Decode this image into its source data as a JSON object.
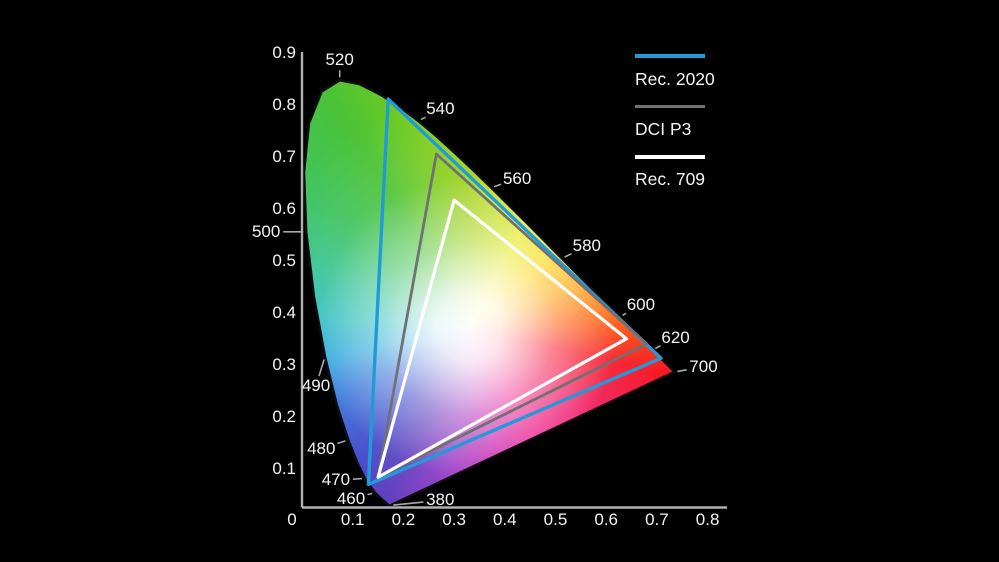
{
  "figure": {
    "background": "#000000",
    "legend": [
      {
        "label": "Rec. 2020",
        "color": "#219bd8"
      },
      {
        "label": "DCI P3",
        "color": "#707173"
      },
      {
        "label": "Rec. 709",
        "color": "#ffffff"
      }
    ]
  },
  "chart_data": {
    "type": "area",
    "subtype": "CIE 1931 xy chromaticity diagram with color gamut overlays",
    "title": "",
    "xlabel": "",
    "ylabel": "",
    "xlim": [
      0,
      0.8
    ],
    "ylim": [
      0,
      0.9
    ],
    "grid": false,
    "legend_position": "top-right",
    "x_ticks": [
      "0",
      "0.1",
      "0.2",
      "0.3",
      "0.4",
      "0.5",
      "0.6",
      "0.7",
      "0.8"
    ],
    "y_ticks": [
      "0.9",
      "0.8",
      "0.7",
      "0.6",
      "0.5",
      "0.4",
      "0.3",
      "0.2",
      "0.1"
    ],
    "spectral_locus": [
      [
        380,
        0.1741,
        0.005
      ],
      [
        390,
        0.1738,
        0.0049
      ],
      [
        400,
        0.1733,
        0.0048
      ],
      [
        410,
        0.1726,
        0.0048
      ],
      [
        420,
        0.1714,
        0.0051
      ],
      [
        430,
        0.1689,
        0.0069
      ],
      [
        440,
        0.1644,
        0.0109
      ],
      [
        450,
        0.1566,
        0.0177
      ],
      [
        460,
        0.144,
        0.0297
      ],
      [
        470,
        0.1241,
        0.0578
      ],
      [
        475,
        0.1096,
        0.0868
      ],
      [
        480,
        0.0913,
        0.1327
      ],
      [
        485,
        0.0687,
        0.2007
      ],
      [
        490,
        0.0454,
        0.295
      ],
      [
        495,
        0.0235,
        0.4127
      ],
      [
        500,
        0.0082,
        0.5384
      ],
      [
        505,
        0.0039,
        0.6548
      ],
      [
        510,
        0.0139,
        0.7502
      ],
      [
        515,
        0.0389,
        0.812
      ],
      [
        520,
        0.0743,
        0.8338
      ],
      [
        525,
        0.1142,
        0.8262
      ],
      [
        530,
        0.1547,
        0.8059
      ],
      [
        535,
        0.1929,
        0.7816
      ],
      [
        540,
        0.2296,
        0.7543
      ],
      [
        545,
        0.2658,
        0.7243
      ],
      [
        550,
        0.3016,
        0.6923
      ],
      [
        555,
        0.3373,
        0.6588
      ],
      [
        560,
        0.3731,
        0.6245
      ],
      [
        565,
        0.4087,
        0.5896
      ],
      [
        570,
        0.4441,
        0.5547
      ],
      [
        575,
        0.4788,
        0.5202
      ],
      [
        580,
        0.5125,
        0.4866
      ],
      [
        585,
        0.5448,
        0.4544
      ],
      [
        590,
        0.5752,
        0.4242
      ],
      [
        595,
        0.6029,
        0.3965
      ],
      [
        600,
        0.627,
        0.3725
      ],
      [
        605,
        0.6482,
        0.3514
      ],
      [
        610,
        0.6658,
        0.334
      ],
      [
        615,
        0.6801,
        0.3197
      ],
      [
        620,
        0.6915,
        0.3083
      ],
      [
        625,
        0.7006,
        0.2993
      ],
      [
        630,
        0.7079,
        0.292
      ],
      [
        635,
        0.714,
        0.2859
      ],
      [
        640,
        0.719,
        0.2809
      ],
      [
        650,
        0.726,
        0.274
      ],
      [
        660,
        0.73,
        0.27
      ],
      [
        680,
        0.7334,
        0.2666
      ],
      [
        700,
        0.7347,
        0.2653
      ]
    ],
    "wavelength_labels": [
      {
        "label": "520",
        "x": 0.0743,
        "y": 0.8338
      },
      {
        "label": "540",
        "x": 0.2296,
        "y": 0.7543
      },
      {
        "label": "560",
        "x": 0.3731,
        "y": 0.6245
      },
      {
        "label": "580",
        "x": 0.5125,
        "y": 0.4866
      },
      {
        "label": "600",
        "x": 0.627,
        "y": 0.3725
      },
      {
        "label": "620",
        "x": 0.6915,
        "y": 0.3083
      },
      {
        "label": "700",
        "x": 0.7347,
        "y": 0.2653
      },
      {
        "label": "500",
        "x": 0.0082,
        "y": 0.5384
      },
      {
        "label": "490",
        "x": 0.0454,
        "y": 0.295
      },
      {
        "label": "480",
        "x": 0.0913,
        "y": 0.1327
      },
      {
        "label": "470",
        "x": 0.1241,
        "y": 0.0578
      },
      {
        "label": "460",
        "x": 0.144,
        "y": 0.0297
      },
      {
        "label": "380",
        "x": 0.1741,
        "y": 0.005
      }
    ],
    "series": [
      {
        "name": "Rec. 2020",
        "color": "#219bd8",
        "points": [
          [
            0.708,
            0.292
          ],
          [
            0.17,
            0.797
          ],
          [
            0.131,
            0.046
          ]
        ]
      },
      {
        "name": "DCI P3",
        "color": "#707173",
        "points": [
          [
            0.68,
            0.32
          ],
          [
            0.265,
            0.69
          ],
          [
            0.15,
            0.06
          ]
        ]
      },
      {
        "name": "Rec. 709",
        "color": "#ffffff",
        "points": [
          [
            0.64,
            0.33
          ],
          [
            0.3,
            0.6
          ],
          [
            0.15,
            0.06
          ]
        ]
      }
    ]
  }
}
